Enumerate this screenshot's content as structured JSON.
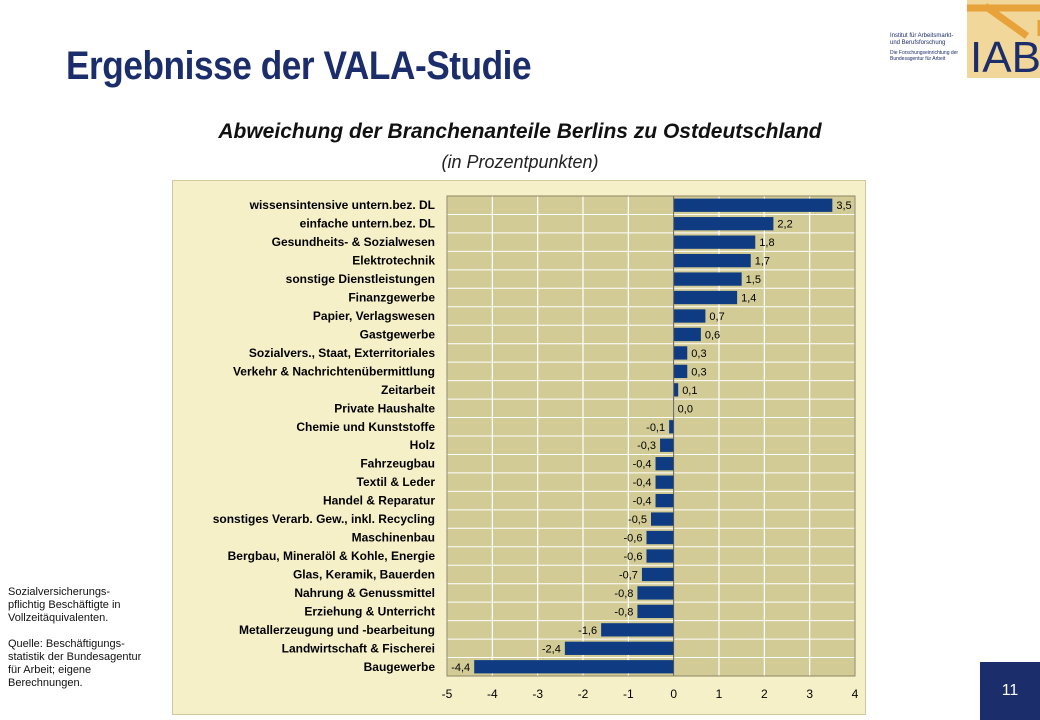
{
  "slide": {
    "title": "Ergebnisse der VALA-Studie",
    "page_number": "11",
    "note_lines": [
      "Sozialversicherungs-\npflichtig Beschäftigte in\nVollzeitäquivalenten.",
      "Quelle: Beschäftigungs-\nstatistik der Bundesagentur\nfür Arbeit; eigene\nBerechnungen."
    ]
  },
  "logo": {
    "line1": "Institut für Arbeitsmarkt-",
    "line2": "und Berufsforschung",
    "line3": "Die Forschungseinrichtung der",
    "line4": "Bundesagentur für Arbeit",
    "mark": "IAB"
  },
  "chart_data": {
    "type": "bar",
    "orientation": "horizontal",
    "title": "Abweichung der Branchenanteile Berlins zu Ostdeutschland",
    "subtitle": "(in Prozentpunkten)",
    "xlim": [
      -5,
      4
    ],
    "xticks": [
      -5,
      -4,
      -3,
      -2,
      -1,
      0,
      1,
      2,
      3,
      4
    ],
    "grid": true,
    "bar_color": "#0f3b82",
    "background_color": "#d2cb96",
    "categories": [
      "wissensintensive untern.bez. DL",
      "einfache untern.bez. DL",
      "Gesundheits- & Sozialwesen",
      "Elektrotechnik",
      "sonstige Dienstleistungen",
      "Finanzgewerbe",
      "Papier, Verlagswesen",
      "Gastgewerbe",
      "Sozialvers., Staat, Exterritoriales",
      "Verkehr & Nachrichtenübermittlung",
      "Zeitarbeit",
      "Private Haushalte",
      "Chemie und Kunststoffe",
      "Holz",
      "Fahrzeugbau",
      "Textil & Leder",
      "Handel & Reparatur",
      "sonstiges Verarb. Gew., inkl. Recycling",
      "Maschinenbau",
      "Bergbau, Mineralöl & Kohle, Energie",
      "Glas, Keramik, Bauerden",
      "Nahrung & Genussmittel",
      "Erziehung & Unterricht",
      "Metallerzeugung und -bearbeitung",
      "Landwirtschaft & Fischerei",
      "Baugewerbe"
    ],
    "values": [
      3.5,
      2.2,
      1.8,
      1.7,
      1.5,
      1.4,
      0.7,
      0.6,
      0.3,
      0.3,
      0.1,
      0.0,
      -0.1,
      -0.3,
      -0.4,
      -0.4,
      -0.4,
      -0.5,
      -0.6,
      -0.6,
      -0.7,
      -0.8,
      -0.8,
      -1.6,
      -2.4,
      -4.4
    ],
    "value_labels": [
      "3,5",
      "2,2",
      "1,8",
      "1,7",
      "1,5",
      "1,4",
      "0,7",
      "0,6",
      "0,3",
      "0,3",
      "0,1",
      "0,0",
      "-0,1",
      "-0,3",
      "-0,4",
      "-0,4",
      "-0,4",
      "-0,5",
      "-0,6",
      "-0,6",
      "-0,7",
      "-0,8",
      "-0,8",
      "-1,6",
      "-2,4",
      "-4,4"
    ]
  }
}
